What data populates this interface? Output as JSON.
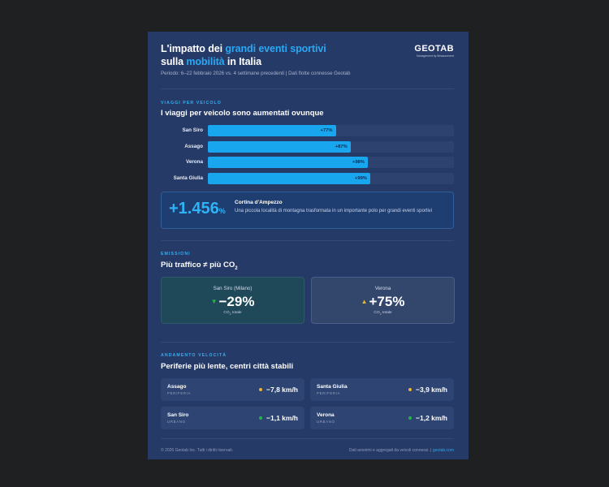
{
  "header": {
    "title_part1": "L'impatto dei ",
    "title_highlight1": "grandi eventi sportivi",
    "title_part2": "sulla ",
    "title_highlight2": "mobilità",
    "title_part3": " in Italia",
    "subtitle": "Periodo: 6–22 febbraio 2026 vs. 4 settimane precedenti | Dati flotte connesse Geotab",
    "logo_word": "GEOTAB",
    "logo_tagline": "Management by Measurement"
  },
  "trips": {
    "kicker": "VIAGGI PER VEICOLO",
    "heading": "I viaggi per veicolo sono aumentati ovunque",
    "bars": [
      {
        "label": "San Siro",
        "value_label": "+77%",
        "fill_pct": 52
      },
      {
        "label": "Assago",
        "value_label": "+87%",
        "fill_pct": 58
      },
      {
        "label": "Verona",
        "value_label": "+98%",
        "fill_pct": 65
      },
      {
        "label": "Santa Giulia",
        "value_label": "+99%",
        "fill_pct": 66
      }
    ],
    "highlight": {
      "number": "+1.456",
      "unit": "%",
      "name": "Cortina d'Ampezzo",
      "description": "Una piccola località di montagna trasformata in un importante polo per grandi eventi sportivi"
    }
  },
  "emissions": {
    "kicker": "EMISSIONI",
    "heading_main": "Più traffico ≠ più CO",
    "heading_sub": "2",
    "cards": [
      {
        "city": "San Siro (Milano)",
        "arrow": "▼",
        "value": "−29%",
        "unit_main": "CO",
        "unit_sub": "2",
        "unit_rest": " totale"
      },
      {
        "city": "Verona",
        "arrow": "▲",
        "value": "+75%",
        "unit_main": "CO",
        "unit_sub": "2",
        "unit_rest": " totale"
      }
    ]
  },
  "speed": {
    "kicker": "ANDAMENTO VELOCITÀ",
    "heading": "Periferie più lente, centri città stabili",
    "items": [
      {
        "name": "Assago",
        "zone": "PERIFERIA",
        "value": "−7,8 km/h",
        "status": "amber"
      },
      {
        "name": "Santa Giulia",
        "zone": "PERIFERIA",
        "value": "−3,9 km/h",
        "status": "amber"
      },
      {
        "name": "San Siro",
        "zone": "URBANO",
        "value": "−1,1 km/h",
        "status": "green"
      },
      {
        "name": "Verona",
        "zone": "URBANO",
        "value": "−1,2 km/h",
        "status": "green"
      }
    ]
  },
  "footer": {
    "copyright": "© 2026 Geotab Inc. Tutti i diritti riservati.",
    "note": "Dati anonimi e aggregati da veicoli connessi. | ",
    "link": "geotab.com"
  },
  "colors": {
    "accent": "#29a8f5",
    "card_bg": "#253a66",
    "page_bg": "#1f2022",
    "decrease": "#28b34a",
    "increase": "#e7b62c"
  }
}
